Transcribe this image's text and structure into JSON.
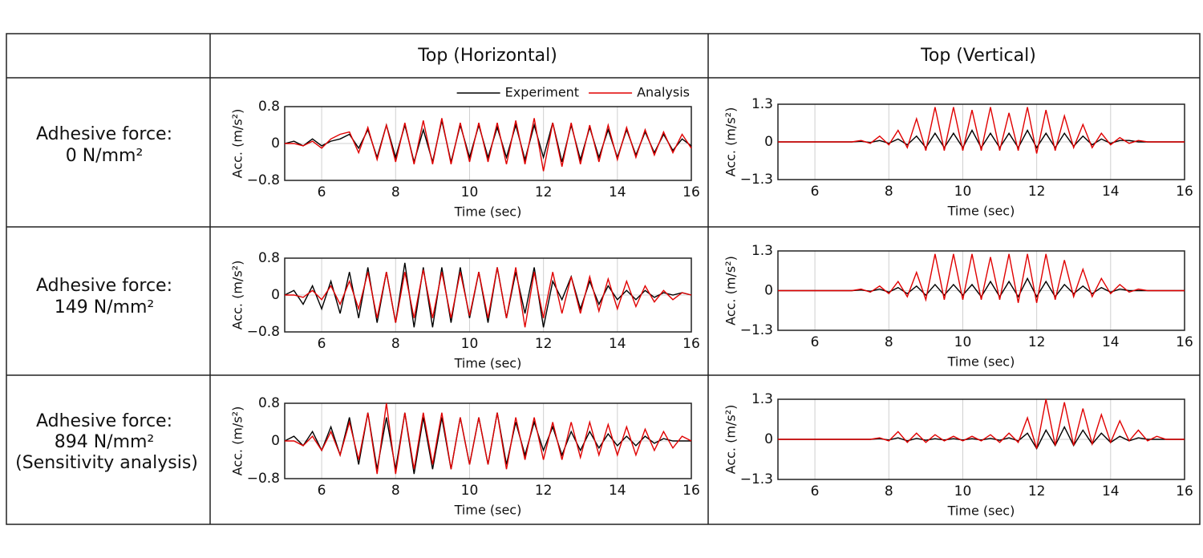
{
  "table": {
    "column_headers": [
      "Top (Horizontal)",
      "Top (Vertical)"
    ],
    "row_labels": [
      [
        "Adhesive force:",
        "0 N/mm²"
      ],
      [
        "Adhesive force:",
        "149 N/mm²"
      ],
      [
        "Adhesive force:",
        "894 N/mm²",
        "(Sensitivity analysis)"
      ]
    ]
  },
  "chart_data": [
    {
      "type": "line",
      "xlabel": "Time (sec)",
      "ylabel": "Acc. (m/s²)",
      "grid": true,
      "xlim": [
        5,
        16
      ],
      "xticks": [
        6,
        8,
        10,
        12,
        14,
        16
      ],
      "ylim": [
        -0.8,
        0.8
      ],
      "yticks": [
        {
          "value": -0.8,
          "label": "−0.8"
        },
        0,
        0.8
      ],
      "x": [
        5,
        5.25,
        5.5,
        5.75,
        6,
        6.25,
        6.5,
        6.75,
        7,
        7.25,
        7.5,
        7.75,
        8,
        8.25,
        8.5,
        8.75,
        9,
        9.25,
        9.5,
        9.75,
        10,
        10.25,
        10.5,
        10.75,
        11,
        11.25,
        11.5,
        11.75,
        12,
        12.25,
        12.5,
        12.75,
        13,
        13.25,
        13.5,
        13.75,
        14,
        14.25,
        14.5,
        14.75,
        15,
        15.25,
        15.5,
        15.75,
        16
      ],
      "series": [
        {
          "name": "Experiment",
          "color": "#000000",
          "values": [
            0,
            0.05,
            -0.05,
            0.1,
            -0.05,
            0.05,
            0.1,
            0.2,
            -0.1,
            0.3,
            -0.3,
            0.4,
            -0.3,
            0.4,
            -0.4,
            0.3,
            -0.4,
            0.5,
            -0.4,
            0.4,
            -0.3,
            0.4,
            -0.3,
            0.35,
            -0.3,
            0.4,
            -0.35,
            0.4,
            -0.3,
            0.45,
            -0.4,
            0.4,
            -0.35,
            0.35,
            -0.3,
            0.3,
            -0.3,
            0.3,
            -0.25,
            0.25,
            -0.2,
            0.2,
            -0.15,
            0.1,
            -0.05
          ]
        },
        {
          "name": "Analysis",
          "color": "#e00000",
          "values": [
            0,
            0,
            -0.05,
            0.05,
            -0.1,
            0.1,
            0.2,
            0.25,
            -0.2,
            0.35,
            -0.35,
            0.4,
            -0.4,
            0.45,
            -0.45,
            0.5,
            -0.45,
            0.55,
            -0.45,
            0.45,
            -0.4,
            0.45,
            -0.4,
            0.45,
            -0.45,
            0.5,
            -0.45,
            0.55,
            -0.6,
            0.45,
            -0.5,
            0.45,
            -0.45,
            0.4,
            -0.4,
            0.4,
            -0.35,
            0.35,
            -0.3,
            0.3,
            -0.25,
            0.25,
            -0.2,
            0.2,
            -0.1
          ]
        }
      ]
    },
    {
      "type": "line",
      "xlabel": "Time (sec)",
      "ylabel": "Acc. (m/s²)",
      "grid": true,
      "xlim": [
        5,
        16
      ],
      "xticks": [
        6,
        8,
        10,
        12,
        14,
        16
      ],
      "ylim": [
        -1.3,
        1.3
      ],
      "yticks": [
        {
          "value": -1.3,
          "label": "−1.3"
        },
        0,
        1.3
      ],
      "x": [
        5,
        5.25,
        5.5,
        5.75,
        6,
        6.25,
        6.5,
        6.75,
        7,
        7.25,
        7.5,
        7.75,
        8,
        8.25,
        8.5,
        8.75,
        9,
        9.25,
        9.5,
        9.75,
        10,
        10.25,
        10.5,
        10.75,
        11,
        11.25,
        11.5,
        11.75,
        12,
        12.25,
        12.5,
        12.75,
        13,
        13.25,
        13.5,
        13.75,
        14,
        14.25,
        14.5,
        14.75,
        15,
        15.25,
        15.5,
        15.75,
        16
      ],
      "series": [
        {
          "color": "#000000",
          "values": [
            0,
            0,
            0,
            0,
            0,
            0,
            0,
            0,
            0,
            0.02,
            -0.02,
            0.05,
            -0.05,
            0.1,
            -0.1,
            0.2,
            -0.2,
            0.3,
            -0.2,
            0.3,
            -0.2,
            0.4,
            -0.2,
            0.3,
            -0.2,
            0.3,
            -0.2,
            0.4,
            -0.2,
            0.3,
            -0.2,
            0.3,
            -0.15,
            0.2,
            -0.1,
            0.1,
            -0.05,
            0.05,
            0.05,
            0,
            0,
            0,
            0,
            0,
            0
          ]
        },
        {
          "color": "#e00000",
          "values": [
            0,
            0,
            0,
            0,
            0,
            0,
            0,
            0,
            0,
            0.05,
            -0.05,
            0.2,
            -0.1,
            0.4,
            -0.2,
            0.8,
            -0.3,
            1.2,
            -0.3,
            1.2,
            -0.3,
            1.1,
            -0.3,
            1.2,
            -0.3,
            1.0,
            -0.3,
            1.2,
            -0.4,
            1.1,
            -0.3,
            0.9,
            -0.2,
            0.6,
            -0.2,
            0.3,
            -0.1,
            0.15,
            -0.05,
            0.05,
            0,
            0,
            0,
            0,
            0
          ]
        }
      ]
    },
    {
      "type": "line",
      "xlabel": "Time (sec)",
      "ylabel": "Acc. (m/s²)",
      "grid": true,
      "xlim": [
        5,
        16
      ],
      "xticks": [
        6,
        8,
        10,
        12,
        14,
        16
      ],
      "ylim": [
        -0.8,
        0.8
      ],
      "yticks": [
        {
          "value": -0.8,
          "label": "−0.8"
        },
        0,
        0.8
      ],
      "x": [
        5,
        5.25,
        5.5,
        5.75,
        6,
        6.25,
        6.5,
        6.75,
        7,
        7.25,
        7.5,
        7.75,
        8,
        8.25,
        8.5,
        8.75,
        9,
        9.25,
        9.5,
        9.75,
        10,
        10.25,
        10.5,
        10.75,
        11,
        11.25,
        11.5,
        11.75,
        12,
        12.25,
        12.5,
        12.75,
        13,
        13.25,
        13.5,
        13.75,
        14,
        14.25,
        14.5,
        14.75,
        15,
        15.25,
        15.5,
        15.75,
        16
      ],
      "series": [
        {
          "color": "#000000",
          "values": [
            0,
            0.1,
            -0.2,
            0.2,
            -0.3,
            0.3,
            -0.4,
            0.5,
            -0.5,
            0.6,
            -0.6,
            0.5,
            -0.6,
            0.7,
            -0.7,
            0.6,
            -0.7,
            0.6,
            -0.6,
            0.6,
            -0.5,
            0.5,
            -0.6,
            0.6,
            -0.5,
            0.5,
            -0.4,
            0.6,
            -0.7,
            0.3,
            -0.1,
            0.4,
            -0.3,
            0.3,
            -0.2,
            0.2,
            -0.1,
            0.1,
            -0.1,
            0.1,
            -0.05,
            0.05,
            0,
            0.05,
            0
          ]
        },
        {
          "color": "#e00000",
          "values": [
            0,
            0,
            -0.05,
            0.1,
            -0.1,
            0.2,
            -0.2,
            0.3,
            -0.3,
            0.5,
            -0.5,
            0.5,
            -0.6,
            0.5,
            -0.5,
            0.55,
            -0.5,
            0.5,
            -0.5,
            0.5,
            -0.45,
            0.5,
            -0.5,
            0.6,
            -0.5,
            0.6,
            -0.7,
            0.5,
            -0.5,
            0.5,
            -0.4,
            0.4,
            -0.4,
            0.4,
            -0.35,
            0.35,
            -0.3,
            0.3,
            -0.25,
            0.2,
            -0.15,
            0.1,
            -0.1,
            0.05,
            0
          ]
        }
      ]
    },
    {
      "type": "line",
      "xlabel": "Time (sec)",
      "ylabel": "Acc. (m/s²)",
      "grid": true,
      "xlim": [
        5,
        16
      ],
      "xticks": [
        6,
        8,
        10,
        12,
        14,
        16
      ],
      "ylim": [
        -1.3,
        1.3
      ],
      "yticks": [
        {
          "value": -1.3,
          "label": "−1.3"
        },
        0,
        1.3
      ],
      "x": [
        5,
        5.25,
        5.5,
        5.75,
        6,
        6.25,
        6.5,
        6.75,
        7,
        7.25,
        7.5,
        7.75,
        8,
        8.25,
        8.5,
        8.75,
        9,
        9.25,
        9.5,
        9.75,
        10,
        10.25,
        10.5,
        10.75,
        11,
        11.25,
        11.5,
        11.75,
        12,
        12.25,
        12.5,
        12.75,
        13,
        13.25,
        13.5,
        13.75,
        14,
        14.25,
        14.5,
        14.75,
        15,
        15.25,
        15.5,
        15.75,
        16
      ],
      "series": [
        {
          "color": "#000000",
          "values": [
            0,
            0,
            0,
            0,
            0,
            0,
            0,
            0,
            0,
            0.02,
            -0.02,
            0.05,
            -0.05,
            0.1,
            -0.1,
            0.15,
            -0.15,
            0.2,
            -0.15,
            0.2,
            -0.15,
            0.2,
            -0.2,
            0.3,
            -0.2,
            0.3,
            -0.2,
            0.4,
            -0.2,
            0.3,
            -0.2,
            0.2,
            -0.1,
            0.15,
            -0.1,
            0.1,
            -0.05,
            0.05,
            0,
            0,
            0,
            0,
            0,
            0,
            0
          ]
        },
        {
          "color": "#e00000",
          "values": [
            0,
            0,
            0,
            0,
            0,
            0,
            0,
            0,
            0,
            0.05,
            -0.05,
            0.15,
            -0.1,
            0.3,
            -0.2,
            0.6,
            -0.3,
            1.2,
            -0.3,
            1.2,
            -0.3,
            1.2,
            -0.3,
            1.1,
            -0.3,
            1.2,
            -0.4,
            1.2,
            -0.4,
            1.2,
            -0.3,
            1.0,
            -0.2,
            0.7,
            -0.2,
            0.4,
            -0.1,
            0.2,
            -0.05,
            0.05,
            0,
            0,
            0,
            0,
            0
          ]
        }
      ]
    },
    {
      "type": "line",
      "xlabel": "Time (sec)",
      "ylabel": "Acc. (m/s²)",
      "grid": true,
      "xlim": [
        5,
        16
      ],
      "xticks": [
        6,
        8,
        10,
        12,
        14,
        16
      ],
      "ylim": [
        -0.8,
        0.8
      ],
      "yticks": [
        {
          "value": -0.8,
          "label": "−0.8"
        },
        0,
        0.8
      ],
      "x": [
        5,
        5.25,
        5.5,
        5.75,
        6,
        6.25,
        6.5,
        6.75,
        7,
        7.25,
        7.5,
        7.75,
        8,
        8.25,
        8.5,
        8.75,
        9,
        9.25,
        9.5,
        9.75,
        10,
        10.25,
        10.5,
        10.75,
        11,
        11.25,
        11.5,
        11.75,
        12,
        12.25,
        12.5,
        12.75,
        13,
        13.25,
        13.5,
        13.75,
        14,
        14.25,
        14.5,
        14.75,
        15,
        15.25,
        15.5,
        15.75,
        16
      ],
      "series": [
        {
          "color": "#000000",
          "values": [
            0,
            0.1,
            -0.1,
            0.2,
            -0.2,
            0.3,
            -0.3,
            0.5,
            -0.5,
            0.6,
            -0.6,
            0.5,
            -0.6,
            0.6,
            -0.7,
            0.5,
            -0.6,
            0.5,
            -0.6,
            0.5,
            -0.5,
            0.5,
            -0.5,
            0.6,
            -0.5,
            0.4,
            -0.3,
            0.4,
            -0.2,
            0.3,
            -0.3,
            0.2,
            -0.2,
            0.2,
            -0.15,
            0.15,
            -0.1,
            0.1,
            -0.1,
            0.1,
            -0.05,
            0.05,
            0,
            0,
            0
          ]
        },
        {
          "color": "#e00000",
          "values": [
            0,
            0,
            -0.1,
            0.1,
            -0.2,
            0.2,
            -0.3,
            0.4,
            -0.4,
            0.6,
            -0.7,
            0.8,
            -0.7,
            0.6,
            -0.6,
            0.6,
            -0.5,
            0.6,
            -0.6,
            0.5,
            -0.5,
            0.5,
            -0.5,
            0.6,
            -0.6,
            0.5,
            -0.4,
            0.5,
            -0.4,
            0.4,
            -0.4,
            0.4,
            -0.35,
            0.4,
            -0.3,
            0.35,
            -0.3,
            0.3,
            -0.3,
            0.25,
            -0.2,
            0.2,
            -0.15,
            0.1,
            0
          ]
        }
      ]
    },
    {
      "type": "line",
      "xlabel": "Time (sec)",
      "ylabel": "Acc. (m/s²)",
      "grid": true,
      "xlim": [
        5,
        16
      ],
      "xticks": [
        6,
        8,
        10,
        12,
        14,
        16
      ],
      "ylim": [
        -1.3,
        1.3
      ],
      "yticks": [
        {
          "value": -1.3,
          "label": "−1.3"
        },
        0,
        1.3
      ],
      "x": [
        5,
        5.25,
        5.5,
        5.75,
        6,
        6.25,
        6.5,
        6.75,
        7,
        7.25,
        7.5,
        7.75,
        8,
        8.25,
        8.5,
        8.75,
        9,
        9.25,
        9.5,
        9.75,
        10,
        10.25,
        10.5,
        10.75,
        11,
        11.25,
        11.5,
        11.75,
        12,
        12.25,
        12.5,
        12.75,
        13,
        13.25,
        13.5,
        13.75,
        14,
        14.25,
        14.5,
        14.75,
        15,
        15.25,
        15.5,
        15.75,
        16
      ],
      "series": [
        {
          "color": "#000000",
          "values": [
            0,
            0,
            0,
            0,
            0,
            0,
            0,
            0,
            0,
            0,
            0,
            0.02,
            -0.02,
            0.05,
            -0.05,
            0.03,
            -0.03,
            0.02,
            -0.02,
            0.02,
            -0.02,
            0.02,
            -0.02,
            0.03,
            -0.03,
            0.05,
            -0.05,
            0.2,
            -0.3,
            0.3,
            -0.2,
            0.4,
            -0.2,
            0.3,
            -0.15,
            0.2,
            -0.1,
            0.1,
            -0.05,
            0.05,
            0,
            0,
            0,
            0,
            0
          ]
        },
        {
          "color": "#e00000",
          "values": [
            0,
            0,
            0,
            0,
            0,
            0,
            0,
            0,
            0,
            0,
            0,
            0.05,
            -0.05,
            0.25,
            -0.1,
            0.2,
            -0.1,
            0.15,
            -0.05,
            0.1,
            -0.05,
            0.1,
            -0.05,
            0.15,
            -0.1,
            0.2,
            -0.1,
            0.7,
            -0.3,
            1.3,
            -0.2,
            1.2,
            -0.2,
            1.0,
            -0.15,
            0.8,
            -0.1,
            0.6,
            -0.05,
            0.3,
            -0.05,
            0.1,
            0,
            0,
            0
          ]
        }
      ]
    }
  ]
}
